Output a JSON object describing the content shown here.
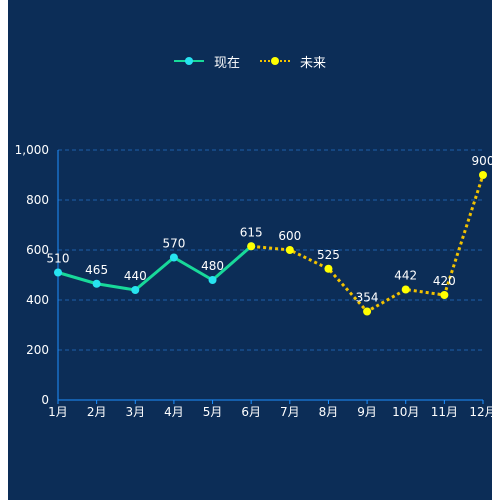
{
  "colors": {
    "background": "#0c2d57",
    "axis": "#1e90ff",
    "grid": "#1e5ea8",
    "now_line": "#18d99a",
    "now_point": "#27e3f0",
    "future_line": "#f2c200",
    "future_point": "#ffff00"
  },
  "chart_data": {
    "type": "line",
    "categories": [
      "1月",
      "2月",
      "3月",
      "4月",
      "5月",
      "6月",
      "7月",
      "8月",
      "9月",
      "10月",
      "11月",
      "12月"
    ],
    "series": [
      {
        "name": "现在",
        "values": [
          510,
          465,
          440,
          570,
          480,
          615,
          null,
          null,
          null,
          null,
          null,
          null
        ],
        "style": "solid"
      },
      {
        "name": "未来",
        "values": [
          null,
          null,
          null,
          null,
          null,
          615,
          600,
          525,
          354,
          442,
          420,
          900
        ],
        "style": "dotted"
      }
    ],
    "yticks": [
      "0",
      "200",
      "400",
      "600",
      "800",
      "1,000"
    ],
    "ylim": [
      0,
      1000
    ],
    "grid": true,
    "legend_position": "top-center"
  }
}
